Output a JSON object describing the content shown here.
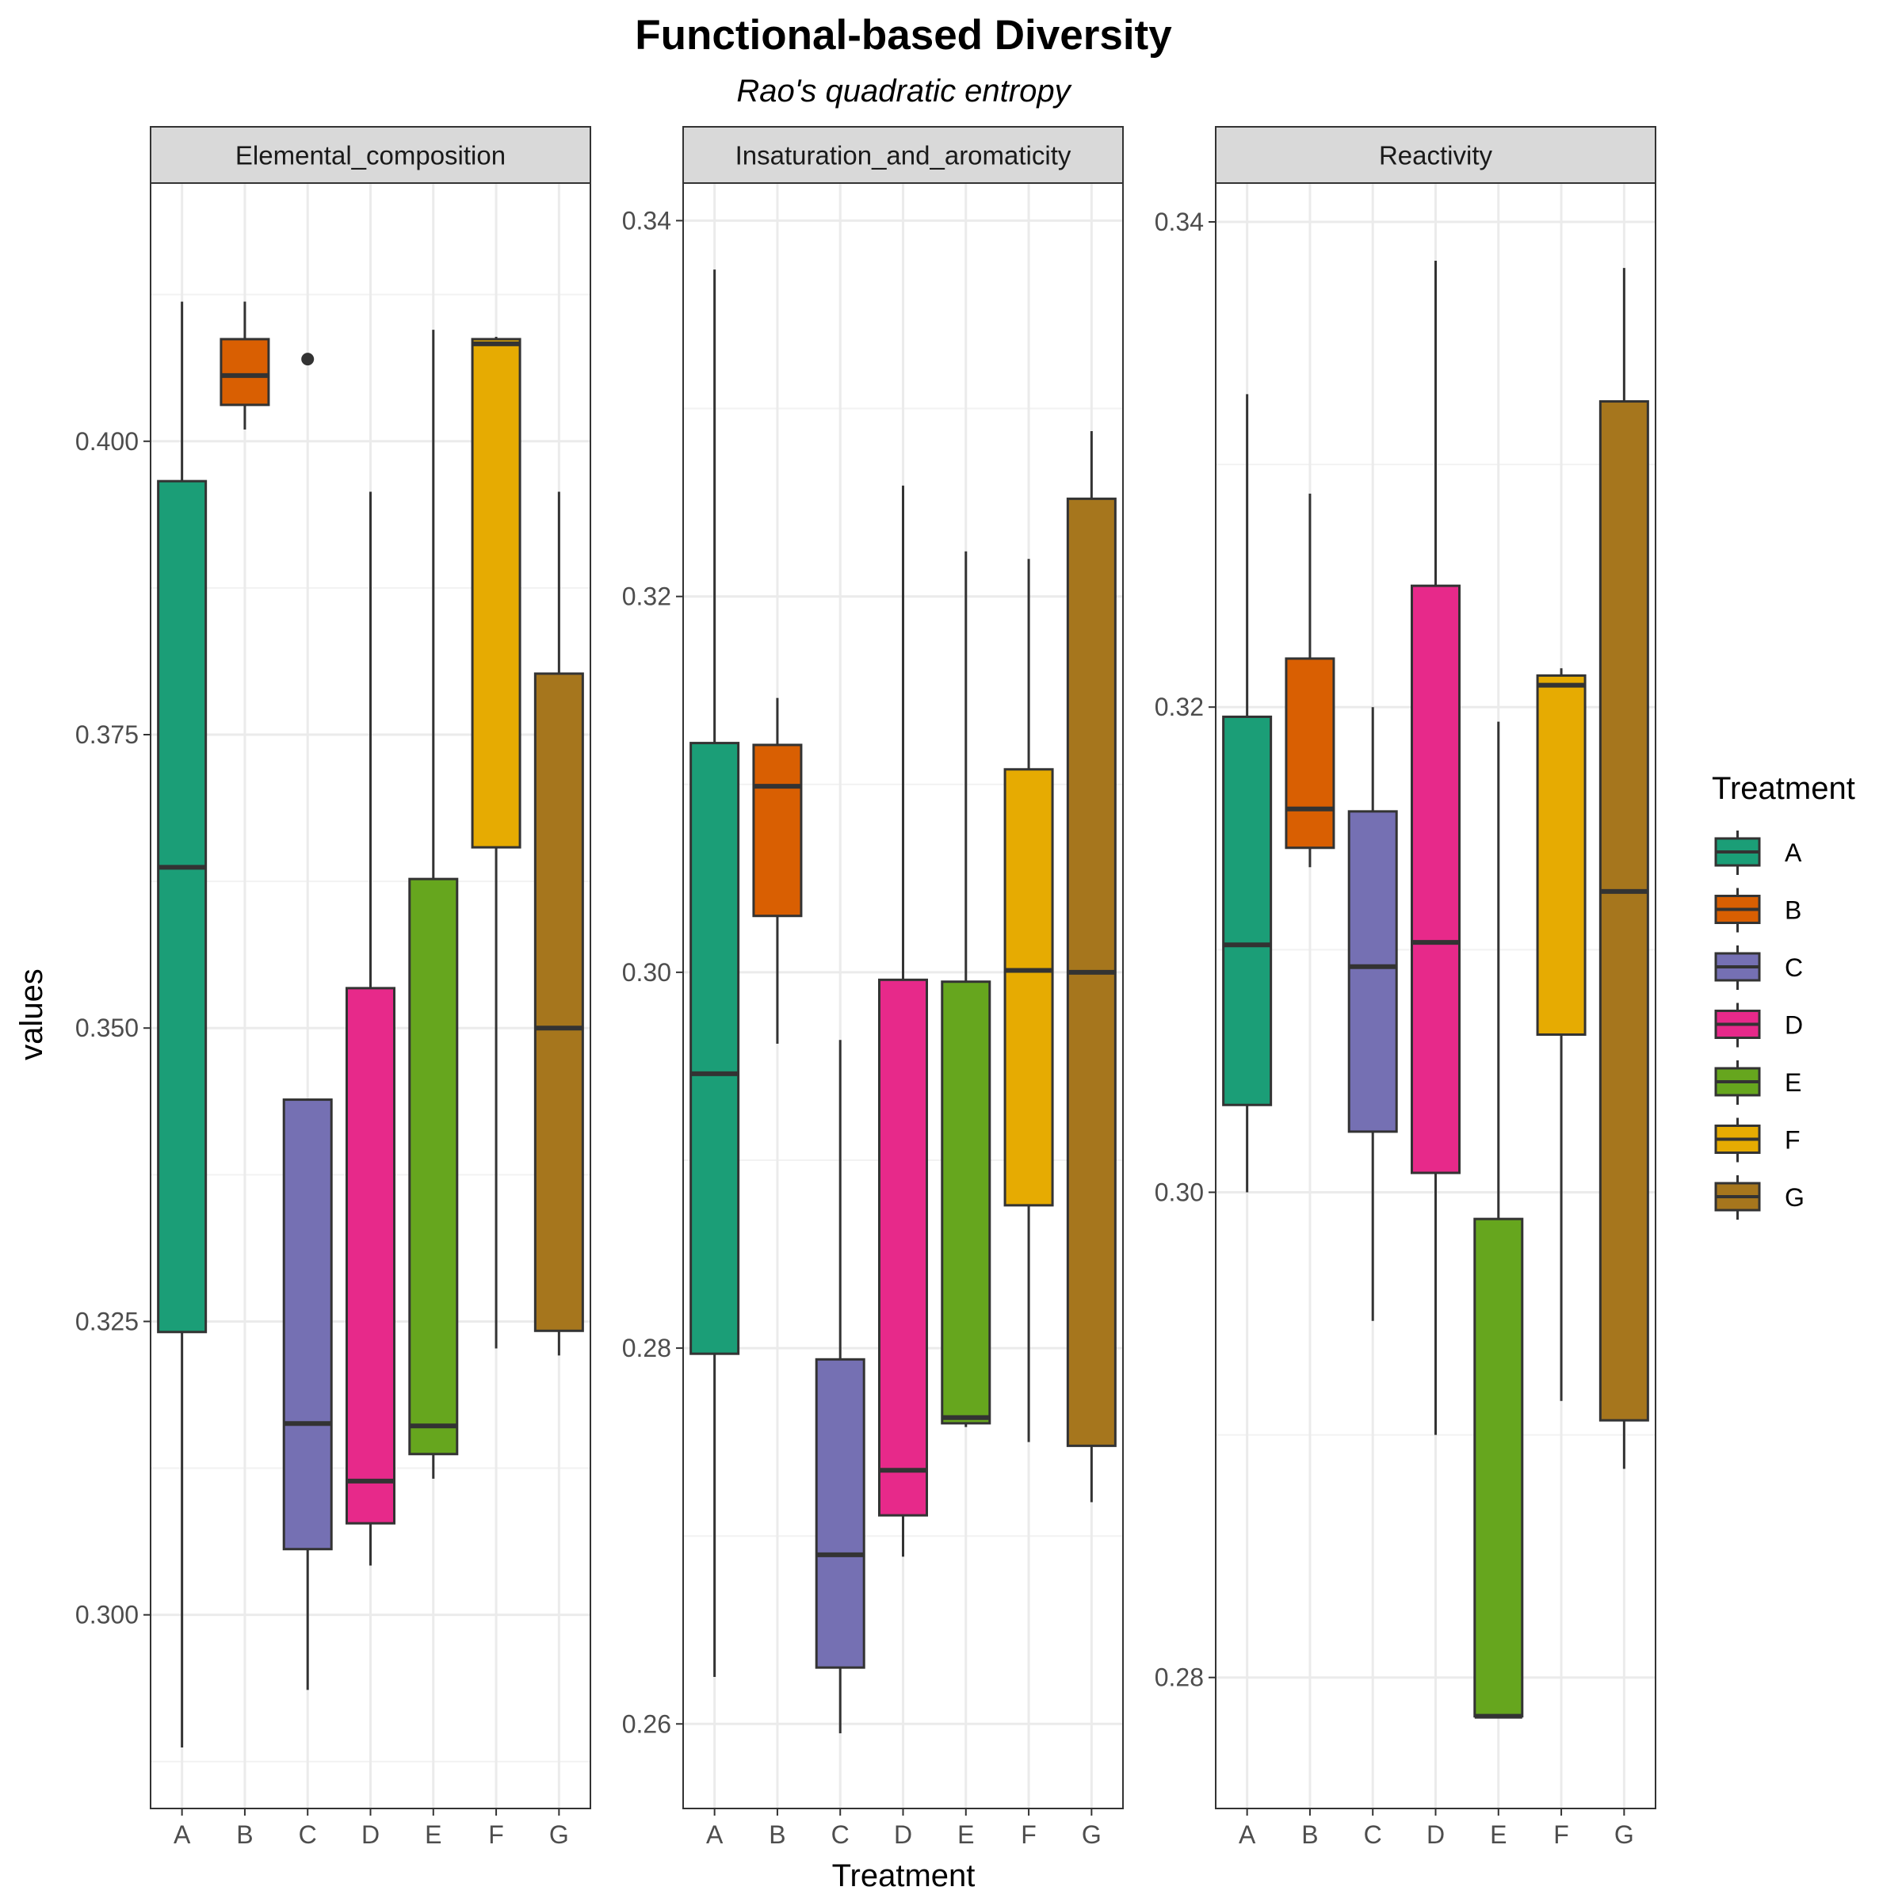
{
  "chart_data": {
    "type": "boxplot",
    "title": "Functional-based Diversity",
    "subtitle": "Rao's quadratic entropy",
    "xlabel": "Treatment",
    "ylabel": "values",
    "categories": [
      "A",
      "B",
      "C",
      "D",
      "E",
      "F",
      "G"
    ],
    "colors": {
      "A": "#1b9e77",
      "B": "#d95f02",
      "C": "#7570b3",
      "D": "#e7298a",
      "E": "#66a61e",
      "F": "#e6ab02",
      "G": "#a6761d"
    },
    "legend": {
      "title": "Treatment",
      "position": "right"
    },
    "grid": true,
    "facets": [
      {
        "name": "Elemental_composition",
        "ylim": [
          0.2835,
          0.422
        ],
        "yticks": [
          0.3,
          0.325,
          0.35,
          0.375,
          0.4
        ],
        "ytick_labels": [
          "0.300",
          "0.325",
          "0.350",
          "0.375",
          "0.400"
        ],
        "boxes": [
          {
            "group": "A",
            "lower_whisker": 0.2887,
            "q1": 0.3241,
            "median": 0.3637,
            "q3": 0.3966,
            "upper_whisker": 0.4119,
            "outliers": []
          },
          {
            "group": "B",
            "lower_whisker": 0.401,
            "q1": 0.4031,
            "median": 0.4056,
            "q3": 0.4087,
            "upper_whisker": 0.4119,
            "outliers": []
          },
          {
            "group": "C",
            "lower_whisker": 0.2936,
            "q1": 0.3056,
            "median": 0.3163,
            "q3": 0.3439,
            "upper_whisker": 0.3439,
            "outliers": [
              0.407
            ]
          },
          {
            "group": "D",
            "lower_whisker": 0.3042,
            "q1": 0.3078,
            "median": 0.3114,
            "q3": 0.3534,
            "upper_whisker": 0.3957,
            "outliers": []
          },
          {
            "group": "E",
            "lower_whisker": 0.3116,
            "q1": 0.3137,
            "median": 0.3161,
            "q3": 0.3627,
            "upper_whisker": 0.4095,
            "outliers": []
          },
          {
            "group": "F",
            "lower_whisker": 0.3227,
            "q1": 0.3654,
            "median": 0.4083,
            "q3": 0.4087,
            "upper_whisker": 0.4089,
            "outliers": []
          },
          {
            "group": "G",
            "lower_whisker": 0.3221,
            "q1": 0.3242,
            "median": 0.35,
            "q3": 0.3802,
            "upper_whisker": 0.3957,
            "outliers": []
          }
        ]
      },
      {
        "name": "Insaturation_and_aromaticity",
        "ylim": [
          0.2555,
          0.342
        ],
        "yticks": [
          0.26,
          0.28,
          0.3,
          0.32,
          0.34
        ],
        "ytick_labels": [
          "0.26",
          "0.28",
          "0.30",
          "0.32",
          "0.34"
        ],
        "boxes": [
          {
            "group": "A",
            "lower_whisker": 0.2625,
            "q1": 0.2797,
            "median": 0.2946,
            "q3": 0.3122,
            "upper_whisker": 0.3374,
            "outliers": []
          },
          {
            "group": "B",
            "lower_whisker": 0.2962,
            "q1": 0.303,
            "median": 0.3099,
            "q3": 0.3121,
            "upper_whisker": 0.3146,
            "outliers": []
          },
          {
            "group": "C",
            "lower_whisker": 0.2595,
            "q1": 0.263,
            "median": 0.269,
            "q3": 0.2794,
            "upper_whisker": 0.2964,
            "outliers": []
          },
          {
            "group": "D",
            "lower_whisker": 0.2689,
            "q1": 0.2711,
            "median": 0.2735,
            "q3": 0.2996,
            "upper_whisker": 0.3259,
            "outliers": []
          },
          {
            "group": "E",
            "lower_whisker": 0.2758,
            "q1": 0.276,
            "median": 0.2763,
            "q3": 0.2995,
            "upper_whisker": 0.3224,
            "outliers": []
          },
          {
            "group": "F",
            "lower_whisker": 0.275,
            "q1": 0.2876,
            "median": 0.3001,
            "q3": 0.3108,
            "upper_whisker": 0.322,
            "outliers": []
          },
          {
            "group": "G",
            "lower_whisker": 0.2718,
            "q1": 0.2748,
            "median": 0.3,
            "q3": 0.3252,
            "upper_whisker": 0.3288,
            "outliers": []
          }
        ]
      },
      {
        "name": "Reactivity",
        "ylim": [
          0.2746,
          0.3416
        ],
        "yticks": [
          0.28,
          0.3,
          0.32,
          0.34
        ],
        "ytick_labels": [
          "0.28",
          "0.30",
          "0.32",
          "0.34"
        ],
        "boxes": [
          {
            "group": "A",
            "lower_whisker": 0.3,
            "q1": 0.3036,
            "median": 0.3102,
            "q3": 0.3196,
            "upper_whisker": 0.3329,
            "outliers": []
          },
          {
            "group": "B",
            "lower_whisker": 0.3134,
            "q1": 0.3142,
            "median": 0.3158,
            "q3": 0.322,
            "upper_whisker": 0.3288,
            "outliers": []
          },
          {
            "group": "C",
            "lower_whisker": 0.2947,
            "q1": 0.3025,
            "median": 0.3093,
            "q3": 0.3157,
            "upper_whisker": 0.32,
            "outliers": []
          },
          {
            "group": "D",
            "lower_whisker": 0.29,
            "q1": 0.3008,
            "median": 0.3103,
            "q3": 0.325,
            "upper_whisker": 0.3384,
            "outliers": []
          },
          {
            "group": "E",
            "lower_whisker": 0.2784,
            "q1": 0.2784,
            "median": 0.2784,
            "q3": 0.2989,
            "upper_whisker": 0.3194,
            "outliers": []
          },
          {
            "group": "F",
            "lower_whisker": 0.2914,
            "q1": 0.3065,
            "median": 0.3209,
            "q3": 0.3213,
            "upper_whisker": 0.3216,
            "outliers": []
          },
          {
            "group": "G",
            "lower_whisker": 0.2886,
            "q1": 0.2906,
            "median": 0.3124,
            "q3": 0.3326,
            "upper_whisker": 0.3381,
            "outliers": []
          }
        ]
      }
    ]
  }
}
